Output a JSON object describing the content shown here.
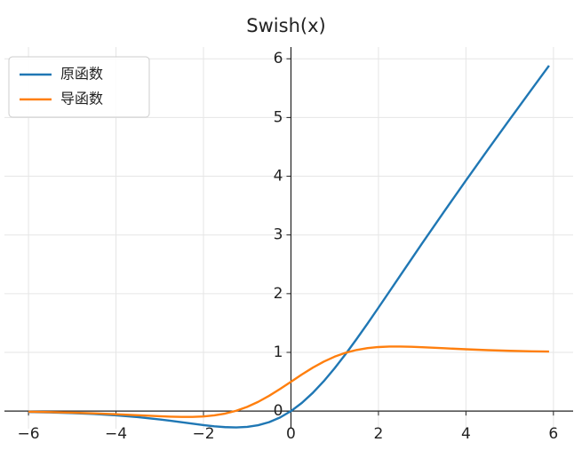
{
  "chart_data": {
    "type": "line",
    "title": "Swish(x)",
    "x": [
      -6,
      -5.5,
      -5,
      -4.5,
      -4,
      -3.5,
      -3,
      -2.75,
      -2.5,
      -2.25,
      -2,
      -1.75,
      -1.5,
      -1.25,
      -1,
      -0.75,
      -0.5,
      -0.25,
      0,
      0.25,
      0.5,
      0.75,
      1,
      1.25,
      1.5,
      1.75,
      2,
      2.25,
      2.5,
      2.75,
      3,
      3.5,
      4,
      4.5,
      5,
      5.5,
      5.9
    ],
    "series": [
      {
        "name": "原函数",
        "color": "#1f77b4",
        "values": [
          -0.0148,
          -0.0224,
          -0.0335,
          -0.0494,
          -0.0719,
          -0.1026,
          -0.1423,
          -0.1652,
          -0.1896,
          -0.2145,
          -0.2384,
          -0.2591,
          -0.2736,
          -0.2784,
          -0.2689,
          -0.2406,
          -0.1888,
          -0.1095,
          0,
          0.1405,
          0.3112,
          0.5094,
          0.7311,
          0.9716,
          1.2264,
          1.4909,
          1.7616,
          2.0355,
          2.3104,
          2.5848,
          2.8577,
          3.3974,
          3.9281,
          4.4506,
          4.9665,
          5.4776,
          5.8839
        ]
      },
      {
        "name": "导函数",
        "color": "#ff7f0e",
        "values": [
          -0.0123,
          -0.0182,
          -0.0265,
          -0.0379,
          -0.0527,
          -0.0703,
          -0.0881,
          -0.0953,
          -0.0994,
          -0.0988,
          -0.0908,
          -0.0727,
          -0.0413,
          0.0063,
          0.0723,
          0.1574,
          0.26,
          0.3763,
          0.5,
          0.6237,
          0.74,
          0.8426,
          0.9277,
          0.9937,
          1.0413,
          1.0727,
          1.0908,
          1.0988,
          1.0994,
          1.0953,
          1.0881,
          1.0703,
          1.0527,
          1.0379,
          1.0265,
          1.0182,
          1.0134
        ]
      }
    ],
    "xlim": [
      -6.55,
      6.45
    ],
    "ylim": [
      -0.3,
      6.2
    ],
    "xticks": [
      {
        "value": -6,
        "label": "−6"
      },
      {
        "value": -4,
        "label": "−4"
      },
      {
        "value": -2,
        "label": "−2"
      },
      0,
      2,
      4,
      6
    ],
    "yticks": [
      0,
      1,
      2,
      3,
      4,
      5,
      6
    ],
    "grid": true,
    "legend": "upper left"
  }
}
